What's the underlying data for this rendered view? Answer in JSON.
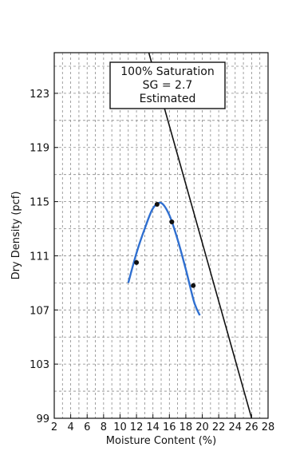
{
  "chart_data": {
    "type": "scatter",
    "xlabel": "Moisture Content (%)",
    "ylabel": "Dry Density (pcf)",
    "xlim": [
      2,
      28
    ],
    "ylim": [
      99,
      126
    ],
    "grid": true,
    "x_ticks": [
      2,
      4,
      6,
      8,
      10,
      12,
      14,
      16,
      18,
      20,
      22,
      24,
      26,
      28
    ],
    "y_ticks": [
      99,
      103,
      107,
      111,
      115,
      119,
      123
    ],
    "points": [
      {
        "x": 12.0,
        "y": 110.5
      },
      {
        "x": 14.5,
        "y": 114.8
      },
      {
        "x": 16.3,
        "y": 113.5
      },
      {
        "x": 18.9,
        "y": 108.8
      }
    ],
    "fit_curve": [
      {
        "x": 11.0,
        "y": 109.0
      },
      {
        "x": 12.0,
        "y": 111.2
      },
      {
        "x": 13.0,
        "y": 113.0
      },
      {
        "x": 14.0,
        "y": 114.5
      },
      {
        "x": 15.0,
        "y": 114.9
      },
      {
        "x": 16.0,
        "y": 114.0
      },
      {
        "x": 17.0,
        "y": 112.2
      },
      {
        "x": 18.0,
        "y": 110.0
      },
      {
        "x": 19.0,
        "y": 107.6
      },
      {
        "x": 19.7,
        "y": 106.6
      }
    ],
    "saturation_line": [
      {
        "x": 13.5,
        "y": 126.0
      },
      {
        "x": 26.0,
        "y": 99.0
      }
    ],
    "annotation": {
      "lines": [
        "100% Saturation",
        "SG = 2.7",
        "Estimated"
      ]
    },
    "colors": {
      "fit_curve": "#2f6fd0",
      "points": "#111111",
      "saturation_line": "#111111"
    }
  }
}
